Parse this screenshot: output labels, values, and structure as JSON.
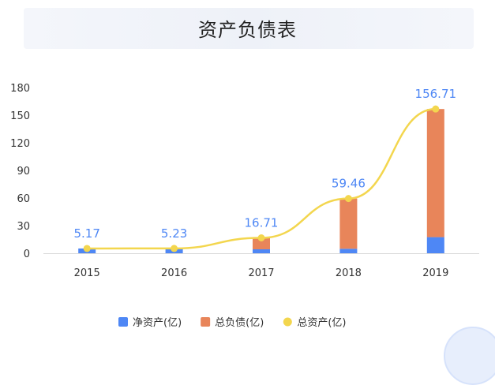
{
  "chart_data": {
    "type": "bar",
    "title": "资产负债表",
    "categories": [
      "2015",
      "2016",
      "2017",
      "2018",
      "2019"
    ],
    "series": [
      {
        "name": "净资产(亿)",
        "type": "bar",
        "stack": "total",
        "color": "#4e87f5",
        "values": [
          5.17,
          5.23,
          4.3,
          4.9,
          17.5
        ]
      },
      {
        "name": "总负债(亿)",
        "type": "bar",
        "stack": "total",
        "color": "#e8855a",
        "values": [
          0,
          0,
          12.41,
          54.56,
          139.21
        ]
      },
      {
        "name": "总资产(亿)",
        "type": "line",
        "color": "#f3d64e",
        "values": [
          5.17,
          5.23,
          16.71,
          59.46,
          156.71
        ]
      }
    ],
    "data_labels": [
      "5.17",
      "5.23",
      "16.71",
      "59.46",
      "156.71"
    ],
    "data_label_color": "#4e87f5",
    "ylim": [
      0,
      180
    ],
    "yticks": [
      0,
      30,
      60,
      90,
      120,
      150,
      180
    ],
    "ytick_labels": [
      "0",
      "30",
      "60",
      "90",
      "120",
      "150",
      "180"
    ],
    "xlabel": "",
    "ylabel": "",
    "grid": false,
    "legend": "bottom-center"
  }
}
